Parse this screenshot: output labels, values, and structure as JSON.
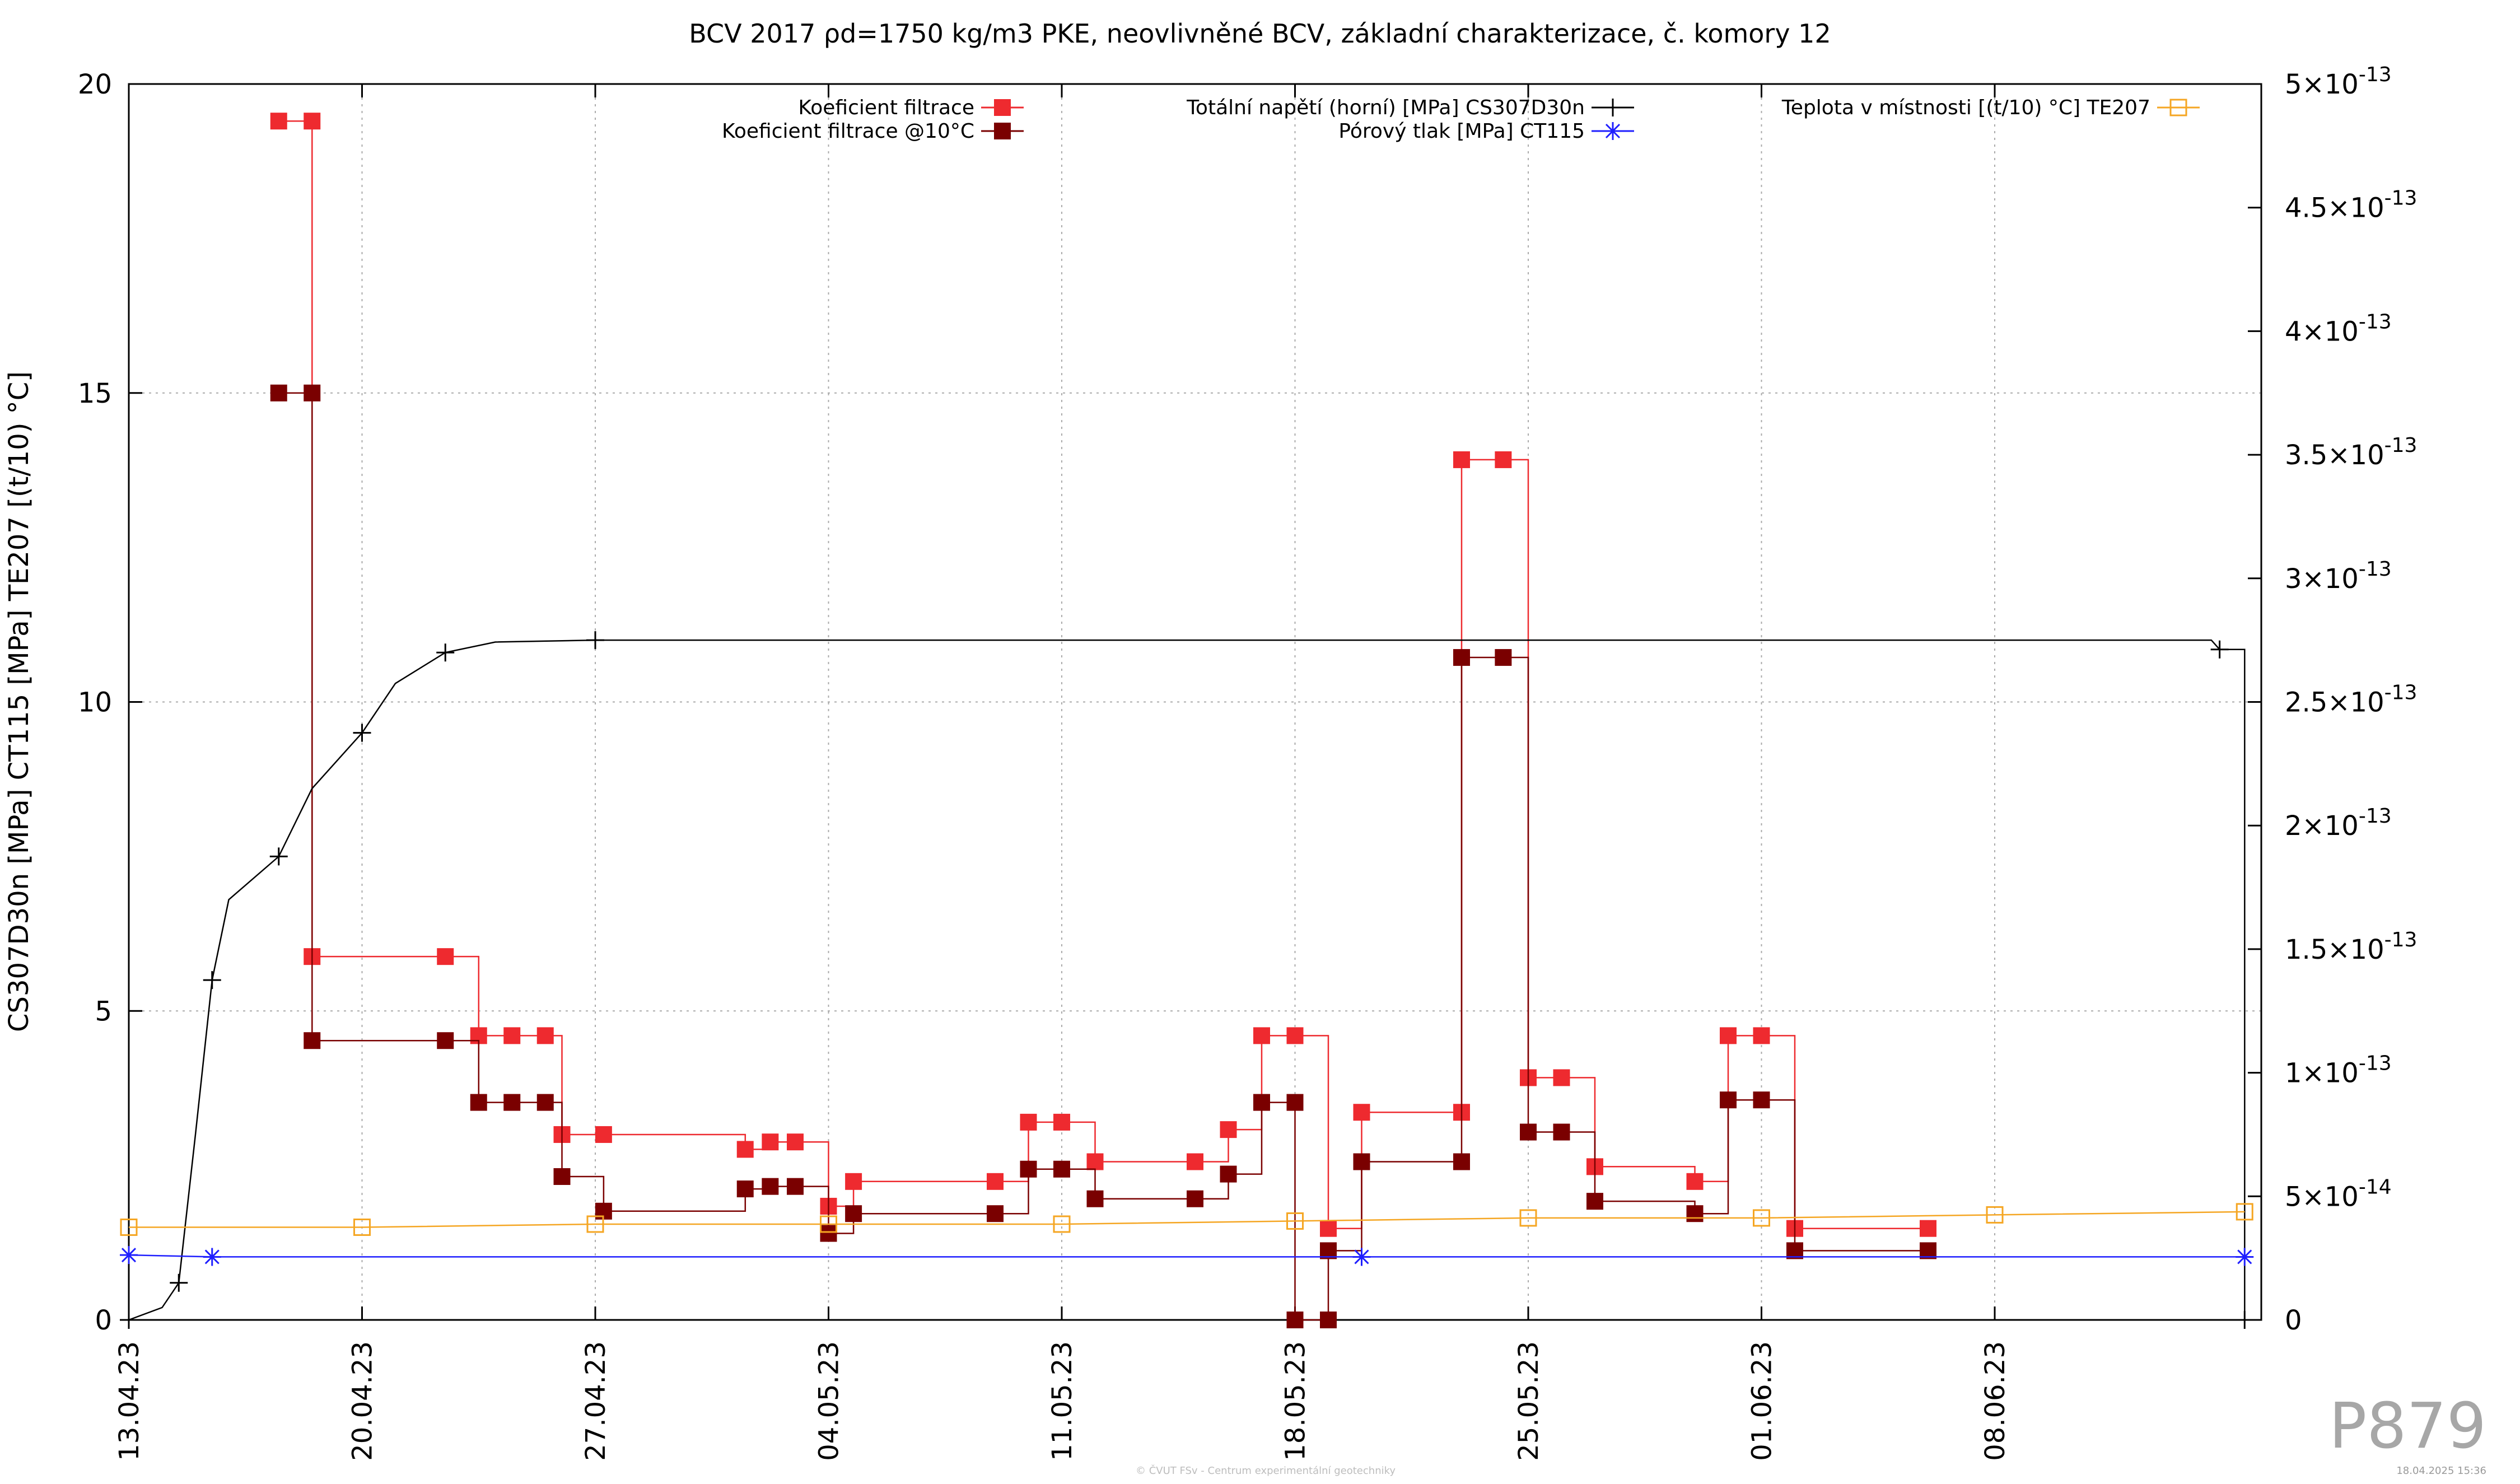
{
  "chart_data": {
    "type": "line",
    "title": "BCV 2017 ρd=1750 kg/m3 PKE, neovlivněné BCV, základní charakterizace, č. komory 12",
    "ylabel": "CS307D30n [MPa] CT115 [MPa] TE207 [(t/10) °C]",
    "y2label": "",
    "ylim": [
      0,
      20
    ],
    "y2lim": [
      0,
      5e-13
    ],
    "xlim": [
      "2023-04-13",
      "2023-06-16"
    ],
    "y_ticks": [
      "0",
      "5",
      "10",
      "15",
      "20"
    ],
    "y2_ticks": [
      {
        "base": "0",
        "exp": ""
      },
      {
        "base": "5×10",
        "exp": "-14"
      },
      {
        "base": "1×10",
        "exp": "-13"
      },
      {
        "base": "1.5×10",
        "exp": "-13"
      },
      {
        "base": "2×10",
        "exp": "-13"
      },
      {
        "base": "2.5×10",
        "exp": "-13"
      },
      {
        "base": "3×10",
        "exp": "-13"
      },
      {
        "base": "3.5×10",
        "exp": "-13"
      },
      {
        "base": "4×10",
        "exp": "-13"
      },
      {
        "base": "4.5×10",
        "exp": "-13"
      },
      {
        "base": "5×10",
        "exp": "-13"
      }
    ],
    "x_ticks": [
      "13.04.23",
      "20.04.23",
      "27.04.23",
      "04.05.23",
      "11.05.23",
      "18.05.23",
      "25.05.23",
      "01.06.23",
      "08.06.23"
    ],
    "grid": true,
    "legend_position": "top",
    "series": [
      {
        "name": "Koeficient filtrace",
        "axis": "y2",
        "color": "#ee2a2f",
        "marker": "filled-square",
        "step": true,
        "points": [
          [
            "2023-04-17 12:00",
            4.85e-13
          ],
          [
            "2023-04-18 12:00",
            4.85e-13
          ],
          [
            "2023-04-18 12:00",
            1.47e-13
          ],
          [
            "2023-04-22 12:00",
            1.47e-13
          ],
          [
            "2023-04-23 12:00",
            1.15e-13
          ],
          [
            "2023-04-24 12:00",
            1.15e-13
          ],
          [
            "2023-04-25 12:00",
            1.15e-13
          ],
          [
            "2023-04-26 00:00",
            7.5e-14
          ],
          [
            "2023-04-27 06:00",
            7.5e-14
          ],
          [
            "2023-05-01 12:00",
            6.9e-14
          ],
          [
            "2023-05-02 06:00",
            7.2e-14
          ],
          [
            "2023-05-03 00:00",
            7.2e-14
          ],
          [
            "2023-05-04 00:00",
            4.6e-14
          ],
          [
            "2023-05-04 18:00",
            5.6e-14
          ],
          [
            "2023-05-09 00:00",
            5.6e-14
          ],
          [
            "2023-05-10 00:00",
            8e-14
          ],
          [
            "2023-05-11 00:00",
            8e-14
          ],
          [
            "2023-05-12 00:00",
            6.4e-14
          ],
          [
            "2023-05-15 00:00",
            6.4e-14
          ],
          [
            "2023-05-16 00:00",
            7.7e-14
          ],
          [
            "2023-05-17 00:00",
            1.15e-13
          ],
          [
            "2023-05-18 00:00",
            1.15e-13
          ],
          [
            "2023-05-19 00:00",
            3.7e-14
          ],
          [
            "2023-05-20 00:00",
            8.4e-14
          ],
          [
            "2023-05-23 00:00",
            8.4e-14
          ],
          [
            "2023-05-23 00:00",
            3.48e-13
          ],
          [
            "2023-05-24 06:00",
            3.48e-13
          ],
          [
            "2023-05-25 00:00",
            9.8e-14
          ],
          [
            "2023-05-26 00:00",
            9.8e-14
          ],
          [
            "2023-05-27 00:00",
            6.2e-14
          ],
          [
            "2023-05-30 00:00",
            5.6e-14
          ],
          [
            "2023-05-31 00:00",
            1.15e-13
          ],
          [
            "2023-06-01 00:00",
            1.15e-13
          ],
          [
            "2023-06-02 00:00",
            3.7e-14
          ],
          [
            "2023-06-06 00:00",
            3.7e-14
          ]
        ]
      },
      {
        "name": "Koeficient filtrace @10°C",
        "axis": "y2",
        "color": "#7a0000",
        "marker": "filled-square",
        "step": true,
        "points": [
          [
            "2023-04-17 12:00",
            3.75e-13
          ],
          [
            "2023-04-18 12:00",
            3.75e-13
          ],
          [
            "2023-04-18 12:00",
            1.13e-13
          ],
          [
            "2023-04-22 12:00",
            1.13e-13
          ],
          [
            "2023-04-23 12:00",
            8.8e-14
          ],
          [
            "2023-04-24 12:00",
            8.8e-14
          ],
          [
            "2023-04-25 12:00",
            8.8e-14
          ],
          [
            "2023-04-26 00:00",
            5.8e-14
          ],
          [
            "2023-04-27 06:00",
            4.4e-14
          ],
          [
            "2023-05-01 12:00",
            5.3e-14
          ],
          [
            "2023-05-02 06:00",
            5.4e-14
          ],
          [
            "2023-05-03 00:00",
            5.4e-14
          ],
          [
            "2023-05-04 00:00",
            3.5e-14
          ],
          [
            "2023-05-04 18:00",
            4.3e-14
          ],
          [
            "2023-05-09 00:00",
            4.3e-14
          ],
          [
            "2023-05-10 00:00",
            6.1e-14
          ],
          [
            "2023-05-11 00:00",
            6.1e-14
          ],
          [
            "2023-05-12 00:00",
            4.9e-14
          ],
          [
            "2023-05-15 00:00",
            4.9e-14
          ],
          [
            "2023-05-16 00:00",
            5.9e-14
          ],
          [
            "2023-05-17 00:00",
            8.8e-14
          ],
          [
            "2023-05-18 00:00",
            8.8e-14
          ],
          [
            "2023-05-18 00:00",
            0
          ],
          [
            "2023-05-19 00:00",
            0
          ],
          [
            "2023-05-19 00:00",
            2.8e-14
          ],
          [
            "2023-05-20 00:00",
            6.4e-14
          ],
          [
            "2023-05-23 00:00",
            6.4e-14
          ],
          [
            "2023-05-23 00:00",
            2.68e-13
          ],
          [
            "2023-05-24 06:00",
            2.68e-13
          ],
          [
            "2023-05-25 00:00",
            7.6e-14
          ],
          [
            "2023-05-26 00:00",
            7.6e-14
          ],
          [
            "2023-05-27 00:00",
            4.8e-14
          ],
          [
            "2023-05-30 00:00",
            4.3e-14
          ],
          [
            "2023-05-31 00:00",
            8.9e-14
          ],
          [
            "2023-06-01 00:00",
            8.9e-14
          ],
          [
            "2023-06-02 00:00",
            2.8e-14
          ],
          [
            "2023-06-06 00:00",
            2.8e-14
          ]
        ]
      },
      {
        "name": "Totální napětí (horní) [MPa] CS307D30n",
        "axis": "y1",
        "color": "#000000",
        "marker": "plus",
        "points": [
          [
            "2023-04-13 00:00",
            0
          ],
          [
            "2023-04-14 00:00",
            0.2
          ],
          [
            "2023-04-14 12:00",
            0.6
          ],
          [
            "2023-04-15 00:00",
            3.0
          ],
          [
            "2023-04-15 12:00",
            5.5
          ],
          [
            "2023-04-16 00:00",
            6.8
          ],
          [
            "2023-04-17 12:00",
            7.5
          ],
          [
            "2023-04-18 12:00",
            8.6
          ],
          [
            "2023-04-20 00:00",
            9.5
          ],
          [
            "2023-04-21 00:00",
            10.3
          ],
          [
            "2023-04-22 12:00",
            10.8
          ],
          [
            "2023-04-24 00:00",
            10.97
          ],
          [
            "2023-04-27 00:00",
            11.0
          ],
          [
            "2023-06-14 12:00",
            11.0
          ],
          [
            "2023-06-14 18:00",
            10.85
          ],
          [
            "2023-06-15 12:00",
            10.85
          ],
          [
            "2023-06-15 12:00",
            0
          ]
        ]
      },
      {
        "name": "Pórový tlak [MPa] CT115",
        "axis": "y1",
        "color": "#1f1fff",
        "marker": "asterisk",
        "points": [
          [
            "2023-04-13 00:00",
            1.05
          ],
          [
            "2023-04-15 12:00",
            1.02
          ],
          [
            "2023-05-20 00:00",
            1.02
          ],
          [
            "2023-06-15 12:00",
            1.02
          ]
        ]
      },
      {
        "name": "Teplota v místnosti [(t/10) °C] TE207",
        "axis": "y1",
        "color": "#f5a623",
        "marker": "open-square",
        "points": [
          [
            "2023-04-13 00:00",
            1.5
          ],
          [
            "2023-04-20 00:00",
            1.5
          ],
          [
            "2023-04-27 00:00",
            1.55
          ],
          [
            "2023-05-04 00:00",
            1.55
          ],
          [
            "2023-05-11 00:00",
            1.55
          ],
          [
            "2023-05-18 00:00",
            1.6
          ],
          [
            "2023-05-25 00:00",
            1.65
          ],
          [
            "2023-06-01 00:00",
            1.65
          ],
          [
            "2023-06-08 00:00",
            1.7
          ],
          [
            "2023-06-15 12:00",
            1.75
          ]
        ]
      }
    ]
  },
  "watermark": {
    "code": "P879",
    "copyright": "© ČVUT FSv - Centrum experimentální geotechniky",
    "timestamp": "18.04.2025 15:36"
  }
}
